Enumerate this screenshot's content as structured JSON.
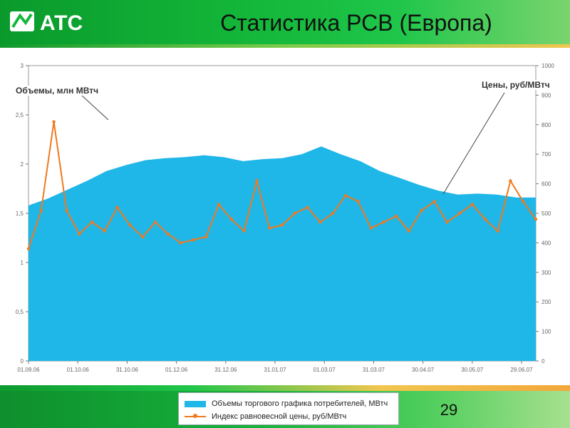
{
  "header": {
    "logo_text": "АТС",
    "title": "Статистика РСВ (Европа)"
  },
  "footer": {
    "page_number": "29"
  },
  "colors": {
    "volume": "#1fb6e8",
    "price": "#f07a1e",
    "header_green": "#14b83a"
  },
  "annotations": {
    "volume": "Объемы, млн МВтч",
    "price": "Цены, руб/МВтч"
  },
  "legend": {
    "volume": "Объемы торгового графика потребителей, МВтч",
    "price": "Индекс равновесной цены, руб/МВтч"
  },
  "chart_data": {
    "type": "area",
    "title": "",
    "x_tick_labels": [
      "01.09.06",
      "01.10.06",
      "31.10.06",
      "01.12.06",
      "31.12.06",
      "31.01.07",
      "01.03.07",
      "31.03.07",
      "30.04.07",
      "30.05.07",
      "29.06.07"
    ],
    "left_axis": {
      "ylim": [
        0,
        3
      ],
      "tick_labels": [
        "0",
        "0,5",
        "1",
        "1,5",
        "2",
        "2,5",
        "3"
      ]
    },
    "right_axis": {
      "ylim": [
        0,
        1000
      ],
      "tick_labels": [
        "0",
        "100",
        "200",
        "300",
        "400",
        "500",
        "600",
        "700",
        "800",
        "900",
        "1000"
      ]
    },
    "series": [
      {
        "name": "Объемы торгового графика потребителей, МВтч",
        "axis": "left",
        "kind": "area",
        "values": [
          1.58,
          1.65,
          1.74,
          1.83,
          1.93,
          1.99,
          2.04,
          2.06,
          2.07,
          2.09,
          2.07,
          2.03,
          2.05,
          2.06,
          2.1,
          2.18,
          2.1,
          2.03,
          1.93,
          1.86,
          1.79,
          1.73,
          1.69,
          1.7,
          1.69,
          1.66,
          1.66
        ]
      },
      {
        "name": "Индекс равновесной цены, руб/МВтч",
        "axis": "right",
        "kind": "line",
        "values": [
          380,
          510,
          810,
          510,
          430,
          470,
          440,
          520,
          460,
          420,
          470,
          430,
          400,
          410,
          420,
          530,
          480,
          440,
          610,
          450,
          460,
          500,
          520,
          470,
          500,
          560,
          540,
          450,
          470,
          490,
          440,
          510,
          540,
          470,
          500,
          530,
          480,
          440,
          610,
          540,
          480
        ]
      }
    ]
  }
}
